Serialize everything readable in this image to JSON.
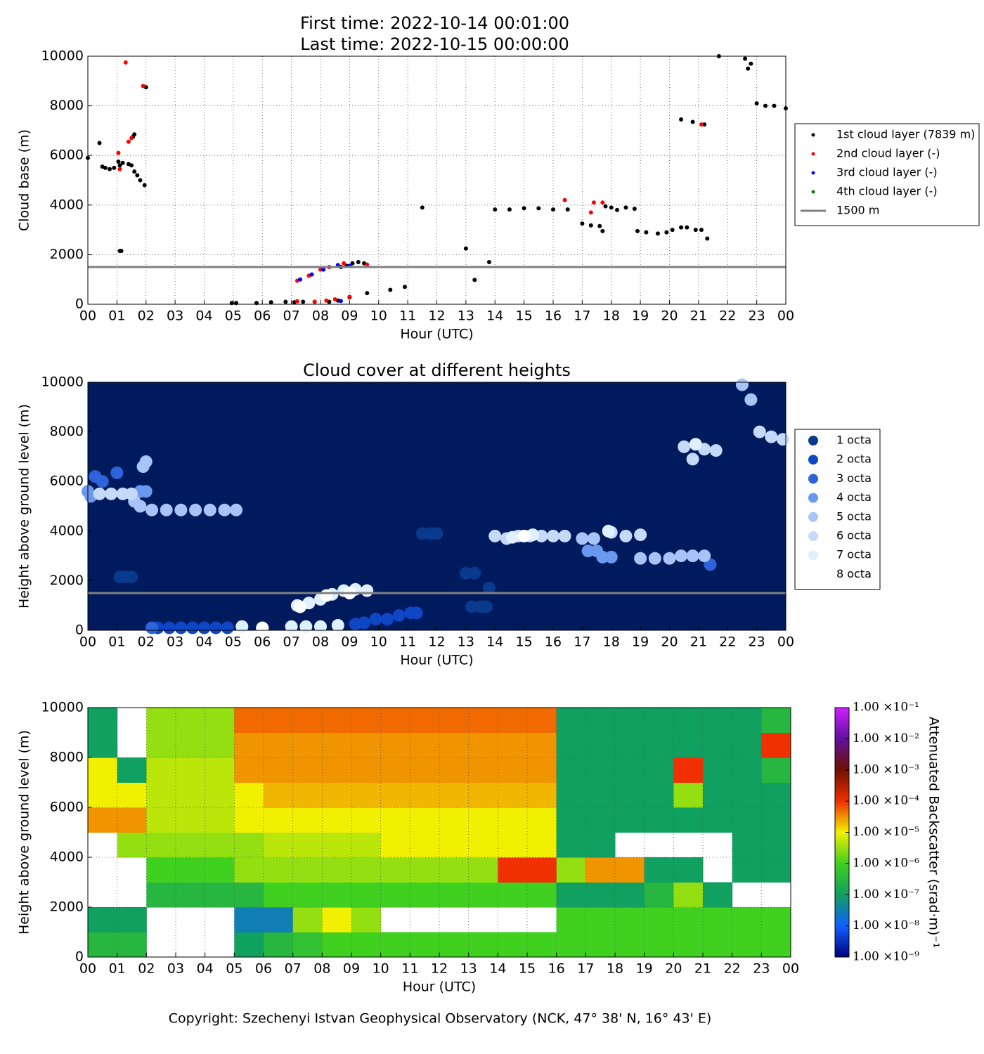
{
  "chart_data": [
    {
      "type": "scatter",
      "title": [
        "First time: 2022-10-14 00:01:00",
        "Last time: 2022-10-15 00:00:00"
      ],
      "x_label": "Hour (UTC)",
      "y_label": "Cloud base (m)",
      "xlim": [
        0,
        24
      ],
      "ylim": [
        0,
        10000
      ],
      "grid": true,
      "xticks": [
        {
          "value": 0,
          "label": "00"
        },
        {
          "value": 1,
          "label": "01"
        },
        {
          "value": 2,
          "label": "02"
        },
        {
          "value": 3,
          "label": "03"
        },
        {
          "value": 4,
          "label": "04"
        },
        {
          "value": 5,
          "label": "05"
        },
        {
          "value": 6,
          "label": "06"
        },
        {
          "value": 7,
          "label": "07"
        },
        {
          "value": 8,
          "label": "08"
        },
        {
          "value": 9,
          "label": "09"
        },
        10,
        11,
        12,
        13,
        14,
        15,
        16,
        17,
        18,
        19,
        20,
        21,
        22,
        23,
        {
          "value": 24,
          "label": "00"
        }
      ],
      "yticks": [
        0,
        2000,
        4000,
        6000,
        8000,
        10000
      ],
      "reference": {
        "name": "1500 m",
        "value": 1500,
        "color": "#808080"
      },
      "series": [
        {
          "name": "1st cloud layer (7839 m)",
          "color": "#000000",
          "x": [
            0,
            0.4,
            0.5,
            0.6,
            0.75,
            0.9,
            1.05,
            1.1,
            1.2,
            1.4,
            1.5,
            1.6,
            1.7,
            1.8,
            1.95,
            1.55,
            1.6,
            1.1,
            1.15,
            2.0,
            4.95,
            5.1,
            5.8,
            6.3,
            6.8,
            7.1,
            7.4,
            7.8,
            8.3,
            8.6,
            8.7,
            8.9,
            9.1,
            9.3,
            9.5,
            9.0,
            9.6,
            10.4,
            10.9,
            11.5,
            13.0,
            13.3,
            13.8,
            14.0,
            14.5,
            15.0,
            15.5,
            16.0,
            16.5,
            17.0,
            17.3,
            17.6,
            17.7,
            17.8,
            18.0,
            18.2,
            18.5,
            18.8,
            18.9,
            19.2,
            19.6,
            19.9,
            20.1,
            20.4,
            20.6,
            20.9,
            21.1,
            21.3,
            20.4,
            20.8,
            21.2,
            21.7,
            22.6,
            22.7,
            22.8,
            23.0,
            23.3,
            23.6,
            24.0
          ],
          "values": [
            5900,
            6500,
            5550,
            5500,
            5450,
            5500,
            5750,
            5600,
            5700,
            5650,
            5600,
            5350,
            5200,
            5000,
            4800,
            6750,
            6850,
            2150,
            2150,
            8750,
            50,
            50,
            50,
            80,
            100,
            80,
            100,
            100,
            100,
            150,
            1500,
            1550,
            1650,
            1700,
            1650,
            280,
            450,
            580,
            700,
            3900,
            2250,
            980,
            1700,
            3820,
            3820,
            3870,
            3870,
            3820,
            3820,
            3250,
            3180,
            3150,
            2950,
            3950,
            3900,
            3800,
            3900,
            3850,
            2950,
            2900,
            2850,
            2900,
            3000,
            3100,
            3100,
            3000,
            3000,
            2650,
            7450,
            7350,
            7250,
            10000,
            9900,
            9500,
            9700,
            8100,
            8000,
            8000,
            7900
          ]
        },
        {
          "name": "2nd cloud layer (-)",
          "color": "#ff0000",
          "x": [
            1.05,
            1.1,
            1.3,
            1.4,
            1.5,
            1.9,
            7.2,
            7.6,
            8.0,
            8.3,
            8.8,
            9.6,
            7.2,
            7.8,
            8.2,
            8.5,
            9.0,
            16.4,
            17.3,
            17.4,
            17.7,
            21.1
          ],
          "values": [
            6100,
            5450,
            9750,
            6550,
            6700,
            8800,
            950,
            1150,
            1400,
            1500,
            1650,
            1600,
            120,
            100,
            150,
            200,
            300,
            4200,
            3700,
            4100,
            4100,
            7250
          ]
        },
        {
          "name": "3rd cloud layer (-)",
          "color": "#0000ff",
          "x": [
            7.3,
            7.7,
            8.1,
            8.6,
            9.0,
            8.7
          ],
          "values": [
            1000,
            1200,
            1400,
            1580,
            1550,
            130
          ]
        },
        {
          "name": "4th cloud layer (-)",
          "color": "#008000",
          "x": [],
          "values": []
        }
      ]
    },
    {
      "type": "scatter",
      "title": "Cloud cover at different heights",
      "x_label": "Hour (UTC)",
      "y_label": "Height above ground level (m)",
      "xlim": [
        0,
        24
      ],
      "ylim": [
        0,
        10000
      ],
      "grid": false,
      "background": "#001a5e",
      "xticks": [
        {
          "value": 0,
          "label": "00"
        },
        {
          "value": 1,
          "label": "01"
        },
        {
          "value": 2,
          "label": "02"
        },
        {
          "value": 3,
          "label": "03"
        },
        {
          "value": 4,
          "label": "04"
        },
        {
          "value": 5,
          "label": "05"
        },
        {
          "value": 6,
          "label": "06"
        },
        {
          "value": 7,
          "label": "07"
        },
        {
          "value": 8,
          "label": "08"
        },
        {
          "value": 9,
          "label": "09"
        },
        10,
        11,
        12,
        13,
        14,
        15,
        16,
        17,
        18,
        19,
        20,
        21,
        22,
        23,
        {
          "value": 24,
          "label": "00"
        }
      ],
      "yticks": [
        0,
        2000,
        4000,
        6000,
        8000,
        10000
      ],
      "reference": {
        "value": 1500,
        "color": "#808080"
      },
      "series": [
        {
          "name": "1 octa",
          "color": "#0a3a8e",
          "x": [
            1.1,
            1.3,
            1.5,
            13.0,
            13.3,
            13.2,
            13.5,
            13.7,
            13.8,
            11.5,
            11.8,
            12.0
          ],
          "values": [
            2150,
            2150,
            2150,
            2300,
            2300,
            950,
            950,
            950,
            1700,
            3900,
            3900,
            3900
          ]
        },
        {
          "name": "2 octa",
          "color": "#0e46c6",
          "x": [
            2.4,
            2.8,
            3.2,
            3.6,
            4.0,
            4.4,
            4.8,
            9.2,
            9.5,
            9.9,
            10.3,
            10.7,
            11.1,
            11.3
          ],
          "values": [
            100,
            100,
            100,
            100,
            100,
            100,
            100,
            250,
            300,
            450,
            450,
            600,
            700,
            700
          ]
        },
        {
          "name": "3 octa",
          "color": "#2f63dc",
          "x": [
            0.25,
            0.5,
            1.0,
            2.2,
            21.4
          ],
          "values": [
            6200,
            6000,
            6350,
            100,
            2650
          ]
        },
        {
          "name": "4 octa",
          "color": "#6a98ef",
          "x": [
            0.0,
            0.1,
            1.8,
            2.0,
            17.2,
            17.5,
            17.7,
            18.0
          ],
          "values": [
            5600,
            5400,
            5600,
            5600,
            3200,
            3200,
            2950,
            2950
          ]
        },
        {
          "name": "5 octa",
          "color": "#a8c4f7",
          "x": [
            1.9,
            2.0,
            2.2,
            2.7,
            3.2,
            3.7,
            4.2,
            4.7,
            5.1,
            1.6,
            1.8,
            17.0,
            17.4,
            19.0,
            19.5,
            20.0,
            20.4,
            20.8,
            21.2,
            22.8,
            22.5
          ],
          "values": [
            6600,
            6800,
            4850,
            4850,
            4850,
            4850,
            4850,
            4850,
            4850,
            5200,
            5000,
            3700,
            3700,
            2900,
            2900,
            2900,
            3000,
            3000,
            3000,
            9300,
            9900
          ]
        },
        {
          "name": "6 octa",
          "color": "#c5daf9",
          "x": [
            0.4,
            0.8,
            1.2,
            1.5,
            14.0,
            14.4,
            14.8,
            15.2,
            15.6,
            16.0,
            16.4,
            18.0,
            18.5,
            19.0,
            20.5,
            20.8,
            21.2,
            21.6,
            23.1,
            23.5,
            23.9
          ],
          "values": [
            5500,
            5500,
            5500,
            5500,
            3800,
            3700,
            3800,
            3800,
            3800,
            3800,
            3800,
            3950,
            3800,
            3850,
            7400,
            6900,
            7300,
            7250,
            8000,
            7800,
            7700
          ]
        },
        {
          "name": "7 octa",
          "color": "#dff0ff",
          "x": [
            5.3,
            6.0,
            7.0,
            7.5,
            8.0,
            8.6,
            7.2,
            7.6,
            8.0,
            8.4,
            8.8,
            9.2,
            9.6,
            14.6,
            15.3,
            17.9,
            20.9
          ],
          "values": [
            150,
            100,
            150,
            150,
            150,
            200,
            1000,
            1100,
            1250,
            1450,
            1600,
            1650,
            1600,
            3750,
            3850,
            4000,
            7500
          ]
        },
        {
          "name": "8 octa",
          "color": "#ffffff",
          "x": [
            6.0,
            7.3,
            8.2,
            9.0,
            15.0
          ],
          "values": [
            80,
            950,
            1400,
            1500,
            3800
          ]
        }
      ]
    },
    {
      "type": "heatmap",
      "x_label": "Hour (UTC)",
      "y_label": "Height above ground level (m)",
      "xlim": [
        0,
        24
      ],
      "ylim": [
        0,
        10000
      ],
      "grid": true,
      "xticks": [
        {
          "value": 0,
          "label": "00"
        },
        {
          "value": 1,
          "label": "01"
        },
        {
          "value": 2,
          "label": "02"
        },
        {
          "value": 3,
          "label": "03"
        },
        {
          "value": 4,
          "label": "04"
        },
        {
          "value": 5,
          "label": "05"
        },
        {
          "value": 6,
          "label": "06"
        },
        {
          "value": 7,
          "label": "07"
        },
        {
          "value": 8,
          "label": "08"
        },
        {
          "value": 9,
          "label": "09"
        },
        10,
        11,
        12,
        13,
        14,
        15,
        16,
        17,
        18,
        19,
        20,
        21,
        22,
        23,
        {
          "value": 24,
          "label": "00"
        }
      ],
      "yticks": [
        0,
        2000,
        4000,
        6000,
        8000,
        10000
      ],
      "xbins": [
        0,
        1,
        2,
        3,
        4,
        5,
        6,
        7,
        8,
        9,
        10,
        11,
        12,
        13,
        14,
        15,
        16,
        17,
        18,
        19,
        20,
        21,
        22,
        23,
        24
      ],
      "ybins": [
        0,
        1000,
        2000,
        3000,
        4000,
        5000,
        6000,
        7000,
        8000,
        9000,
        10000
      ],
      "z": [
        [
          3e-07,
          3e-07,
          null,
          null,
          null,
          1e-07,
          3e-07,
          5e-07,
          1e-06,
          1e-06,
          1e-06,
          1e-06,
          1e-06,
          1e-06,
          1e-06,
          1e-06,
          1e-06,
          1e-06,
          1e-06,
          1e-06,
          1e-06,
          1e-06,
          1e-06,
          1e-06
        ],
        [
          1e-07,
          1e-07,
          null,
          null,
          null,
          3e-08,
          3e-08,
          3e-06,
          1e-05,
          3e-06,
          null,
          null,
          null,
          null,
          null,
          null,
          1e-06,
          1e-06,
          1e-06,
          1e-06,
          1e-06,
          1e-06,
          1e-06,
          1e-06
        ],
        [
          null,
          null,
          3e-07,
          3e-07,
          3e-07,
          3e-07,
          1e-06,
          1e-06,
          1e-06,
          1e-06,
          1e-06,
          1e-06,
          1e-06,
          1e-06,
          1e-06,
          1e-06,
          1e-07,
          1e-07,
          1e-07,
          3e-07,
          3e-06,
          1e-07,
          null,
          null
        ],
        [
          null,
          null,
          1e-06,
          1e-06,
          1e-06,
          3e-06,
          3e-06,
          3e-06,
          3e-06,
          3e-06,
          3e-06,
          3e-06,
          3e-06,
          3e-06,
          0.0001,
          0.0001,
          3e-06,
          3e-05,
          3e-05,
          1e-07,
          1e-07,
          null,
          1e-07,
          1e-07
        ],
        [
          null,
          3e-06,
          3e-06,
          3e-06,
          3e-06,
          3e-06,
          5e-06,
          5e-06,
          5e-06,
          5e-06,
          1e-05,
          1e-05,
          1e-05,
          1e-05,
          1e-05,
          1e-05,
          1e-07,
          1e-07,
          null,
          null,
          null,
          null,
          1e-07,
          1e-07
        ],
        [
          3e-05,
          3e-05,
          5e-06,
          5e-06,
          5e-06,
          1e-05,
          1e-05,
          1e-05,
          1e-05,
          1e-05,
          1e-05,
          1e-05,
          1e-05,
          1e-05,
          1e-05,
          1e-05,
          1e-07,
          1e-07,
          1e-07,
          1e-07,
          1e-07,
          1e-07,
          1e-07,
          1e-07
        ],
        [
          1e-05,
          1e-05,
          5e-06,
          5e-06,
          5e-06,
          1e-05,
          2e-05,
          2e-05,
          2e-05,
          2e-05,
          2e-05,
          2e-05,
          2e-05,
          2e-05,
          2e-05,
          2e-05,
          1e-07,
          1e-07,
          1e-07,
          1e-07,
          3e-06,
          1e-07,
          1e-07,
          1e-07
        ],
        [
          1e-05,
          1e-07,
          5e-06,
          5e-06,
          5e-06,
          3e-05,
          3e-05,
          3e-05,
          3e-05,
          3e-05,
          3e-05,
          3e-05,
          3e-05,
          3e-05,
          3e-05,
          3e-05,
          1e-07,
          1e-07,
          1e-07,
          1e-07,
          0.0001,
          1e-07,
          1e-07,
          3e-07
        ],
        [
          1e-07,
          null,
          3e-06,
          3e-06,
          3e-06,
          3e-05,
          3e-05,
          3e-05,
          3e-05,
          3e-05,
          3e-05,
          3e-05,
          3e-05,
          3e-05,
          3e-05,
          3e-05,
          1e-07,
          1e-07,
          1e-07,
          1e-07,
          1e-07,
          1e-07,
          1e-07,
          0.0001
        ],
        [
          1e-07,
          null,
          3e-06,
          3e-06,
          3e-06,
          5e-05,
          5e-05,
          5e-05,
          5e-05,
          5e-05,
          5e-05,
          5e-05,
          5e-05,
          5e-05,
          5e-05,
          5e-05,
          1e-07,
          1e-07,
          1e-07,
          1e-07,
          1e-07,
          1e-07,
          1e-07,
          3e-07
        ]
      ],
      "log_color": true,
      "clim": [
        1e-09,
        0.1
      ],
      "cticks": [
        {
          "value": 1e-09,
          "label": "1.00 ×10⁻⁹"
        },
        {
          "value": 1e-08,
          "label": "1.00 ×10⁻⁸"
        },
        {
          "value": 1e-07,
          "label": "1.00 ×10⁻⁷"
        },
        {
          "value": 1e-06,
          "label": "1.00 ×10⁻⁶"
        },
        {
          "value": 1e-05,
          "label": "1.00 ×10⁻⁵"
        },
        {
          "value": 0.0001,
          "label": "1.00 ×10⁻⁴"
        },
        {
          "value": 0.001,
          "label": "1.00 ×10⁻³"
        },
        {
          "value": 0.01,
          "label": "1.00 ×10⁻²"
        },
        {
          "value": 0.1,
          "label": "1.00 ×10⁻¹"
        }
      ],
      "colors": [
        "#000080",
        "#1060ff",
        "#10a060",
        "#40d020",
        "#f0f000",
        "#f03000",
        "#701000",
        "#6010a0",
        "#d020ff"
      ],
      "clabel": "Attenuated Backscatter (srad·m)⁻¹"
    }
  ],
  "footer": "Copyright: Szechenyi Istvan Geophysical Observatory (NCK, 47° 38' N, 16° 43' E)"
}
